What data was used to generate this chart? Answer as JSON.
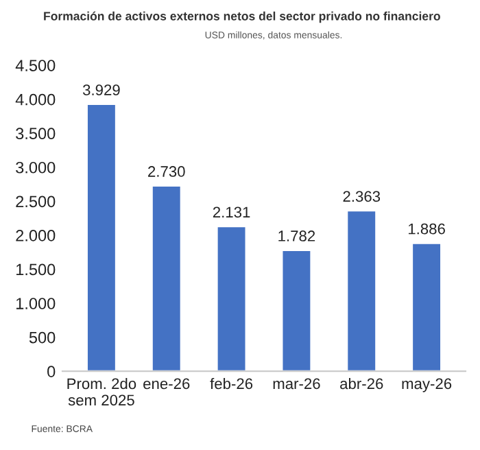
{
  "chart_data": {
    "type": "bar",
    "title": "Formación de activos externos netos del sector privado no financiero",
    "subtitle": "USD millones, datos mensuales.",
    "categories": [
      "Prom. 2do\nsem 2025",
      "ene-26",
      "feb-26",
      "mar-26",
      "abr-26",
      "may-26"
    ],
    "values": [
      3929,
      2730,
      2131,
      1782,
      2363,
      1886
    ],
    "value_labels": [
      "3.929",
      "2.730",
      "2.131",
      "1.782",
      "2.363",
      "1.886"
    ],
    "color": "#4472c4",
    "ylim": [
      0,
      4500
    ],
    "yticks": [
      0,
      {
        "value": 500,
        "label": "500"
      },
      {
        "value": 1000,
        "label": "1.000"
      },
      {
        "value": 1500,
        "label": "1.500"
      },
      {
        "value": 2000,
        "label": "2.000"
      },
      {
        "value": 2500,
        "label": "2.500"
      },
      {
        "value": 3000,
        "label": "3.000"
      },
      {
        "value": 3500,
        "label": "3.500"
      },
      {
        "value": 4000,
        "label": "4.000"
      },
      {
        "value": 4500,
        "label": "4.500"
      }
    ],
    "grid": false,
    "annotations": [
      "Fuente: BCRA"
    ]
  }
}
